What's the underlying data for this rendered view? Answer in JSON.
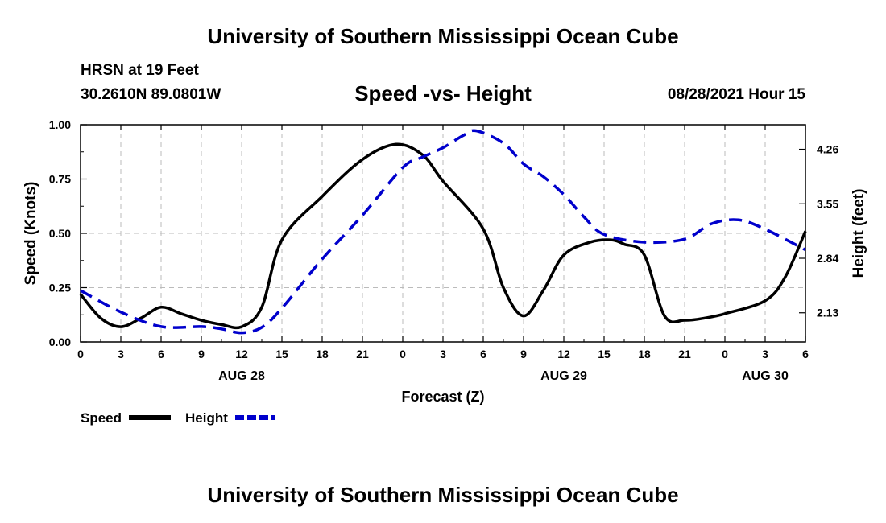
{
  "header": {
    "title": "University of Southern Mississippi Ocean Cube",
    "station": "HRSN at 19 Feet",
    "coords": "30.2610N  89.0801W",
    "subtitle": "Speed -vs- Height",
    "datetime": "08/28/2021 Hour 15"
  },
  "footer": {
    "title": "University of Southern Mississippi Ocean Cube"
  },
  "chart_data": {
    "type": "line",
    "title": "Speed -vs- Height",
    "xlabel": "Forecast (Z)",
    "ylabel": "Speed (Knots)",
    "y2label": "Height (feet)",
    "x_hours": [
      0,
      3,
      6,
      9,
      12,
      15,
      18,
      21,
      24,
      27,
      30,
      33,
      36,
      39,
      42,
      45,
      48,
      51,
      54
    ],
    "x_tick_labels": [
      "0",
      "3",
      "6",
      "9",
      "12",
      "15",
      "18",
      "21",
      "0",
      "3",
      "6",
      "9",
      "12",
      "15",
      "18",
      "21",
      "0",
      "3",
      "6"
    ],
    "date_labels": [
      {
        "hour": 12,
        "label": "AUG 28"
      },
      {
        "hour": 36,
        "label": "AUG 29"
      },
      {
        "hour": 51,
        "label": "AUG 30"
      }
    ],
    "ylim": [
      0,
      1
    ],
    "y_ticks": [
      "0.00",
      "0.25",
      "0.50",
      "0.75",
      "1.00"
    ],
    "y2lim": [
      1.75,
      4.58
    ],
    "y2_ticks": [
      "2.13",
      "2.84",
      "3.55",
      "4.26"
    ],
    "grid": true,
    "legend_position": "bottom-left",
    "series": [
      {
        "name": "Speed",
        "axis": "left",
        "style": "solid",
        "color": "#000000",
        "x": [
          0,
          1.5,
          3,
          4.5,
          6,
          7.5,
          9,
          10.5,
          12,
          13.5,
          15,
          18,
          21,
          23.5,
          25.5,
          27,
          30,
          31.5,
          33,
          34.5,
          36,
          38,
          39.5,
          40.5,
          42,
          43.5,
          45,
          46.5,
          48,
          51,
          52.5,
          54
        ],
        "values": [
          0.22,
          0.11,
          0.07,
          0.11,
          0.16,
          0.13,
          0.1,
          0.08,
          0.07,
          0.16,
          0.47,
          0.67,
          0.84,
          0.91,
          0.86,
          0.74,
          0.52,
          0.25,
          0.12,
          0.24,
          0.4,
          0.46,
          0.47,
          0.45,
          0.4,
          0.12,
          0.1,
          0.11,
          0.13,
          0.19,
          0.3,
          0.51
        ]
      },
      {
        "name": "Height",
        "axis": "right",
        "style": "dashed",
        "color": "#0000cc",
        "x": [
          0,
          3,
          6,
          9,
          10.5,
          12,
          13.5,
          15,
          18,
          21,
          24,
          25.5,
          27,
          28.5,
          29.5,
          31.5,
          33,
          34.5,
          36,
          37.5,
          39,
          42,
          45,
          47,
          49,
          51,
          54
        ],
        "values": [
          2.42,
          2.14,
          1.95,
          1.95,
          1.92,
          1.87,
          1.94,
          2.19,
          2.83,
          3.4,
          4.02,
          4.16,
          4.28,
          4.44,
          4.5,
          4.34,
          4.07,
          3.9,
          3.67,
          3.38,
          3.15,
          3.05,
          3.09,
          3.29,
          3.34,
          3.22,
          2.95
        ]
      }
    ]
  }
}
